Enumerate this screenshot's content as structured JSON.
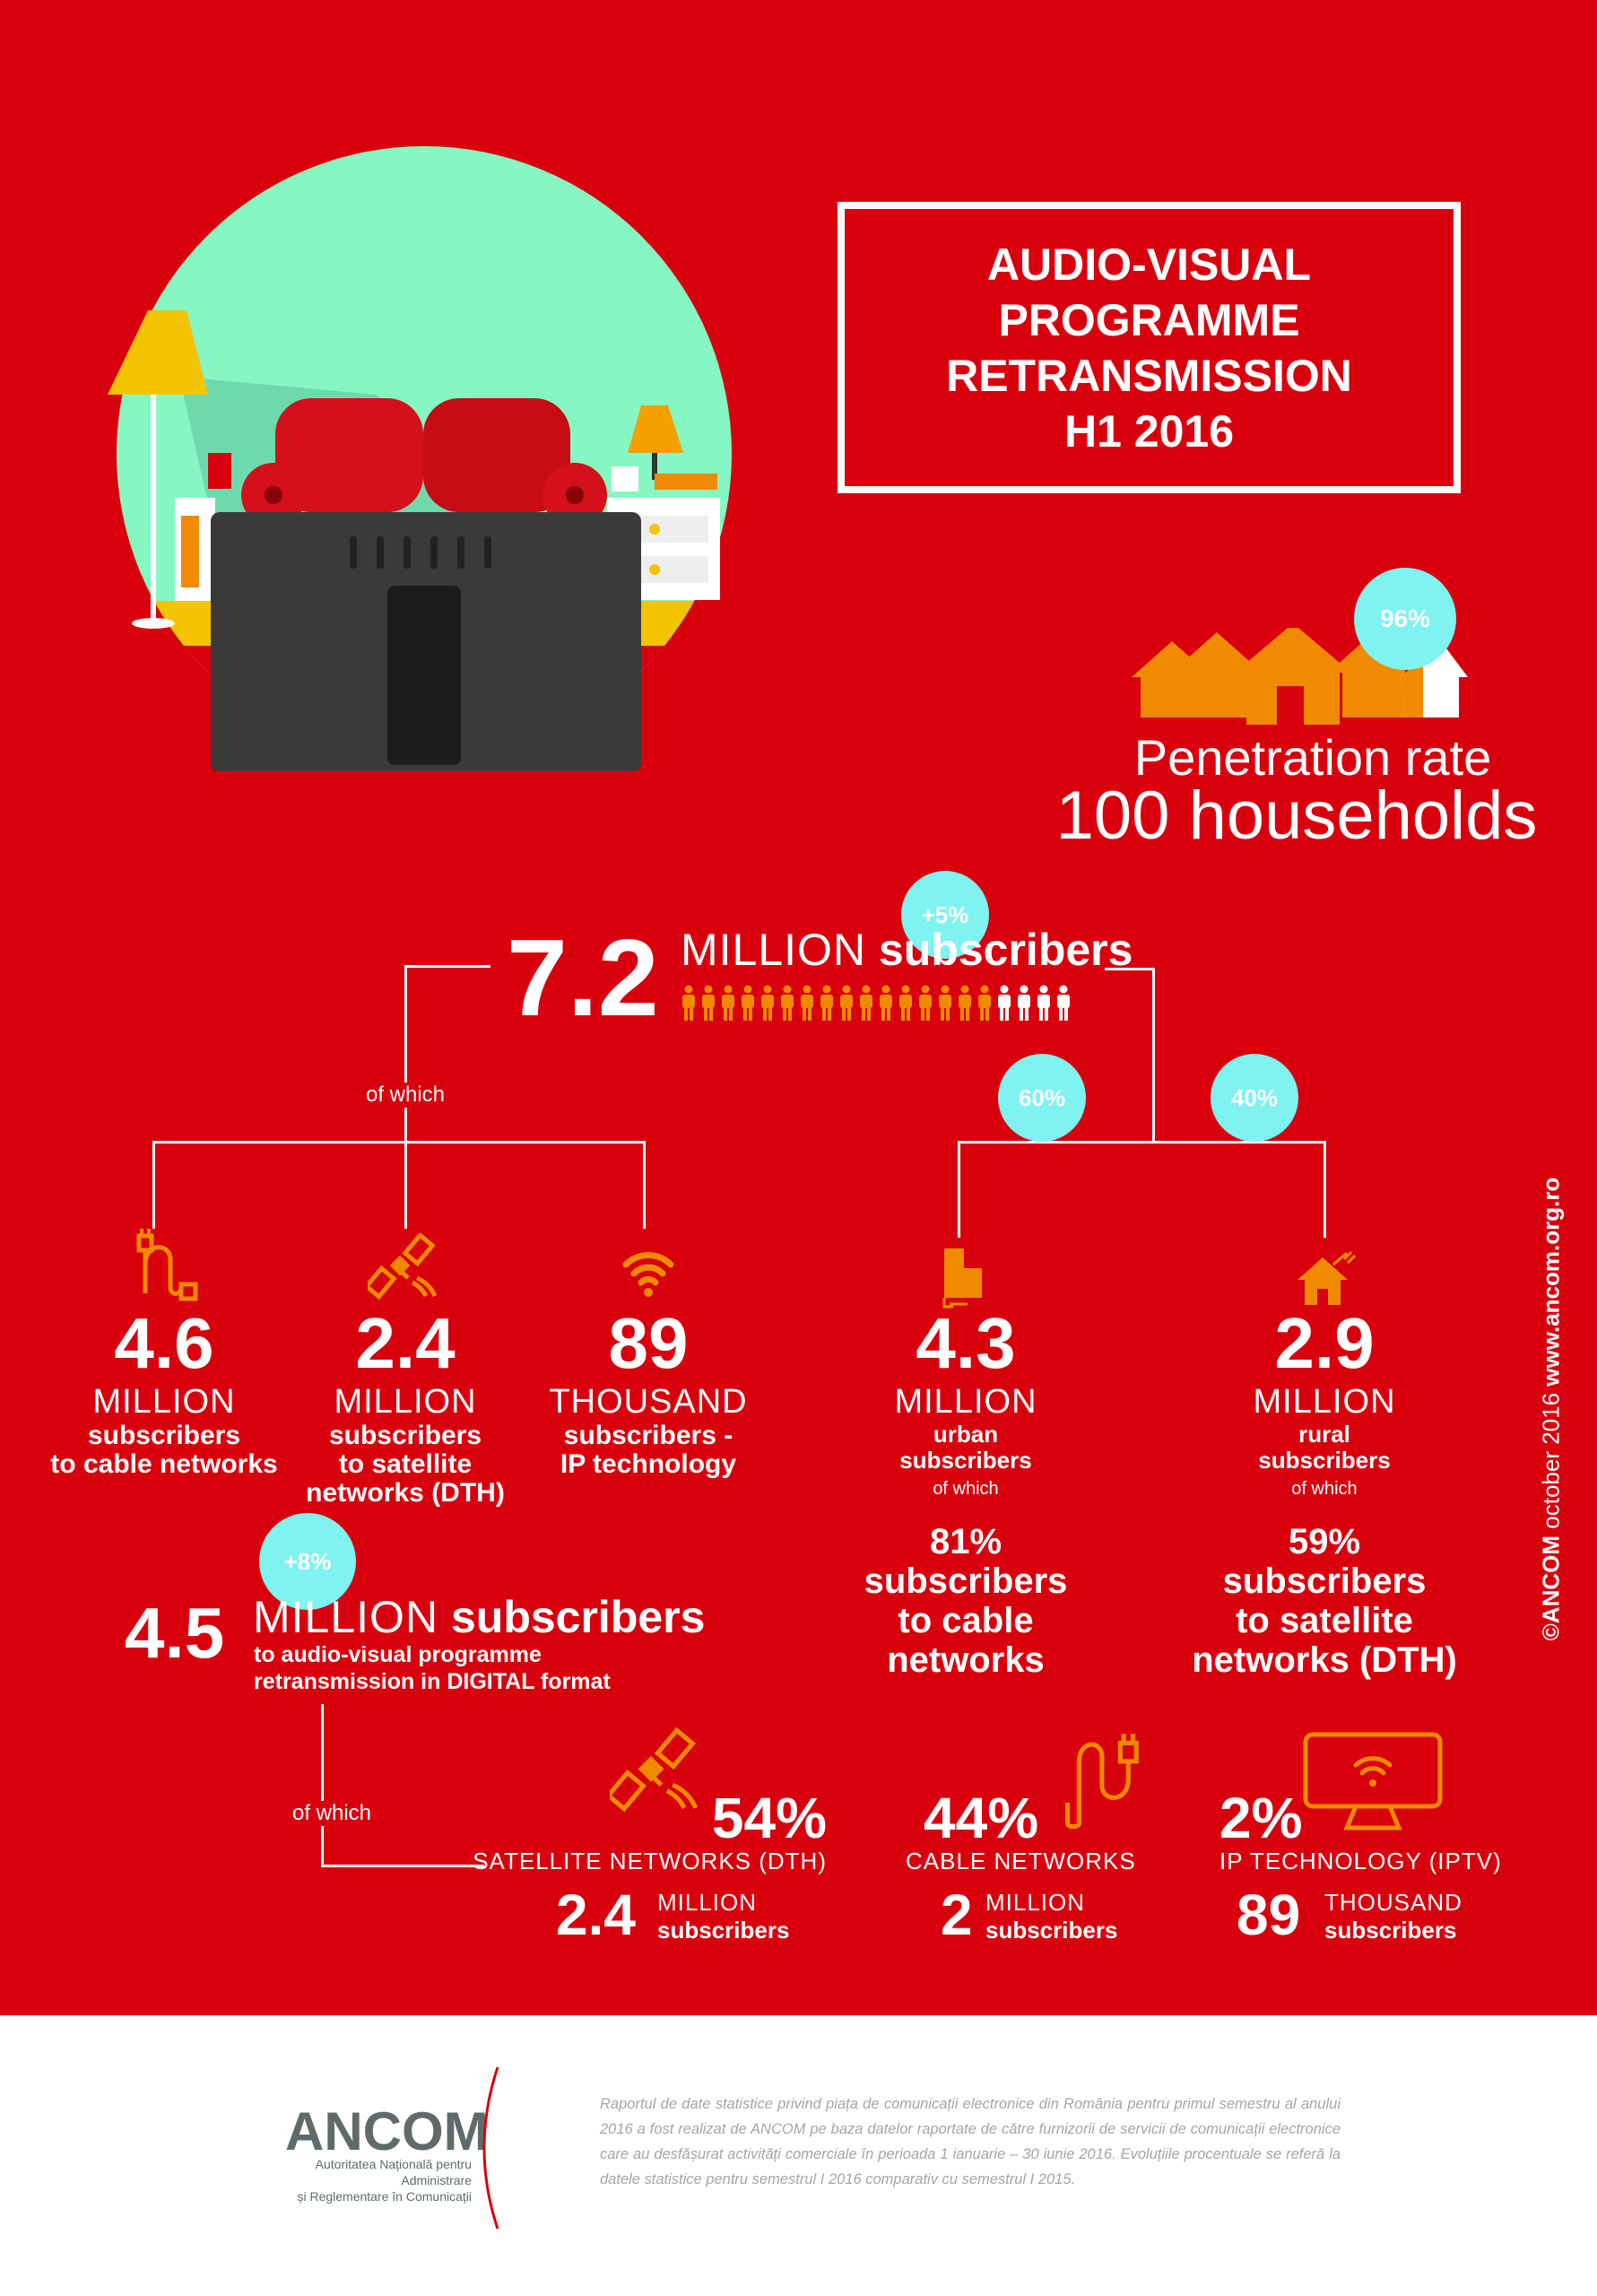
{
  "title": {
    "lines": [
      "AUDIO-VISUAL",
      "PROGRAMME",
      "RETRANSMISSION",
      "H1 2016"
    ]
  },
  "penetration": {
    "badge": "96%",
    "label": "Penetration rate",
    "value": "100 households",
    "fraction": 0.96
  },
  "total": {
    "badge": "+5%",
    "number": "7.2",
    "unit": "MILLION",
    "suffix": "subscribers",
    "people_total": 20,
    "people_highlighted": 16
  },
  "of_which": "of which",
  "split": {
    "urban_badge": "60%",
    "rural_badge": "40%"
  },
  "columns": [
    {
      "icon": "cable-plug-icon",
      "number": "4.6",
      "unit": "MILLION",
      "lines": [
        "subscribers",
        "to cable networks"
      ]
    },
    {
      "icon": "satellite-icon",
      "number": "2.4",
      "unit": "MILLION",
      "lines": [
        "subscribers",
        "to satellite",
        "networks (DTH)"
      ]
    },
    {
      "icon": "wifi-icon",
      "number": "89",
      "unit": "THOUSAND",
      "lines": [
        "subscribers -",
        "IP technology"
      ]
    },
    {
      "icon": "building-icon",
      "number": "4.3",
      "unit": "MILLION",
      "lines": [
        "urban",
        "subscribers"
      ],
      "of_which": "of which",
      "pct": "81%",
      "pct_lines": [
        "subscribers",
        "to cable",
        "networks"
      ]
    },
    {
      "icon": "rural-house-icon",
      "number": "2.9",
      "unit": "MILLION",
      "lines": [
        "rural",
        "subscribers"
      ],
      "of_which": "of which",
      "pct": "59%",
      "pct_lines": [
        "subscribers",
        "to satellite",
        "networks (DTH)"
      ]
    }
  ],
  "digital": {
    "badge": "+8%",
    "number": "4.5",
    "unit": "MILLION",
    "suffix": "subscribers",
    "lines": [
      "to audio-visual programme",
      "retransmission in DIGITAL format"
    ],
    "of_which": "of which"
  },
  "breakdown": [
    {
      "pct": "54%",
      "label": "SATELLITE NETWORKS (DTH)",
      "number": "2.4",
      "unit": "MILLION",
      "sub": "subscribers"
    },
    {
      "pct": "44%",
      "label": "CABLE NETWORKS",
      "number": "2",
      "unit": "MILLION",
      "sub": "subscribers"
    },
    {
      "pct": "2%",
      "label": "IP TECHNOLOGY (IPTV)",
      "number": "89",
      "unit": "THOUSAND",
      "sub": "subscribers"
    }
  ],
  "credit": {
    "prefix": "©ANCOM",
    "date": "october 2016",
    "url": "www.ancom.org.ro"
  },
  "footer": {
    "logo": "ANCOM",
    "logo_sub": [
      "Autoritatea Națională pentru Administrare",
      "și Reglementare în Comunicații"
    ],
    "text": "Raportul de date statistice privind piața de comunicații electronice din România pentru primul semestru al anului 2016 a fost realizat de ANCOM pe baza datelor raportate de către furnizorii de servicii de comunicații electronice care au desfășurat activități comerciale în perioada 1 ianuarie – 30 iunie 2016. Evoluțiile procentuale se referă la datele statistice pentru semestrul I 2016 comparativ cu semestrul I 2015."
  },
  "colors": {
    "background": "#d9000d",
    "accent": "#f08a00",
    "badge": "#7ff3f0",
    "illustration": "#86f7c3"
  }
}
